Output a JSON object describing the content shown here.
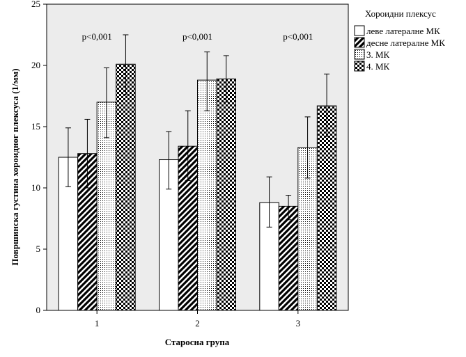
{
  "chart_data": {
    "type": "bar",
    "xlabel": "Старосна група",
    "ylabel": "Површинска густина хороидног плексуса (1/мм)",
    "categories": [
      "1",
      "2",
      "3"
    ],
    "ylim": [
      0,
      25
    ],
    "yticks": [
      0,
      5,
      10,
      15,
      20,
      25
    ],
    "grid": false,
    "legend": {
      "title": "Хороидни плексус",
      "placement": "right"
    },
    "series": [
      {
        "name": "леве латералне МК",
        "pattern": "white",
        "values": [
          12.5,
          12.3,
          8.8
        ],
        "err_low": [
          10.1,
          9.9,
          6.8
        ],
        "err_high": [
          14.9,
          14.6,
          10.9
        ]
      },
      {
        "name": "десне латералне МК",
        "pattern": "diagonal",
        "values": [
          12.8,
          13.4,
          8.5
        ],
        "err_low": [
          10.0,
          10.6,
          7.4
        ],
        "err_high": [
          15.6,
          16.3,
          9.4
        ]
      },
      {
        "name": "3. МК",
        "pattern": "dots",
        "values": [
          17.0,
          18.8,
          13.3
        ],
        "err_low": [
          14.1,
          16.3,
          10.8
        ],
        "err_high": [
          19.8,
          21.1,
          15.8
        ]
      },
      {
        "name": "4. МК",
        "pattern": "checker",
        "values": [
          20.1,
          18.9,
          16.7
        ],
        "err_low": [
          17.6,
          17.0,
          14.2
        ],
        "err_high": [
          22.5,
          20.8,
          19.3
        ]
      }
    ],
    "annotations": [
      "p<0,001",
      "p<0,001",
      "p<0,001"
    ]
  }
}
